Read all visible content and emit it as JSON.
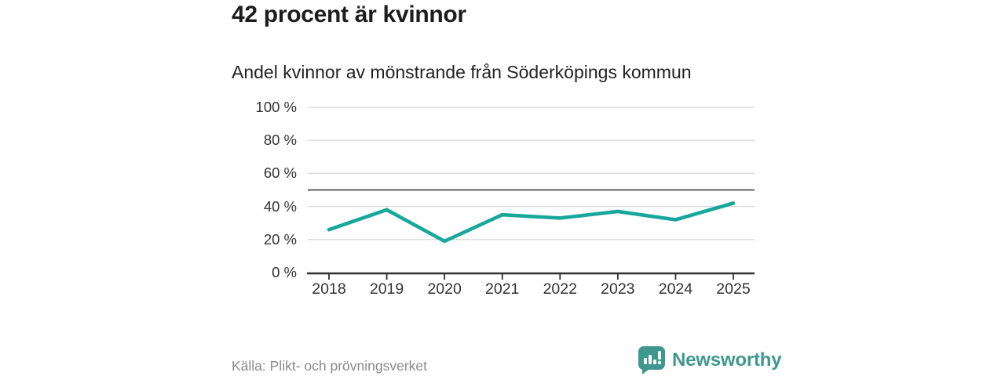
{
  "header": {
    "title": "42 procent är kvinnor",
    "subtitle": "Andel kvinnor av mönstrande från Söderköpings kommun"
  },
  "footer": {
    "source": "Källa: Plikt- och prövningsverket",
    "logo_text": "Newsworthy"
  },
  "colors": {
    "line": "#18a79b",
    "grid": "#d9d9d9",
    "reference": "#4a4a4a",
    "axis": "#2f2f2f",
    "title_text": "#1d1d1d",
    "label_text": "#333333",
    "muted_text": "#8a8a8a",
    "logo": "#3f988e"
  },
  "chart_data": {
    "type": "line",
    "title": "Andel kvinnor av mönstrande från Söderköpings kommun",
    "xlabel": "",
    "ylabel": "",
    "categories": [
      "2018",
      "2019",
      "2020",
      "2021",
      "2022",
      "2023",
      "2024",
      "2025"
    ],
    "series": [
      {
        "name": "Andel kvinnor",
        "values": [
          26,
          38,
          19,
          35,
          33,
          37,
          32,
          42
        ]
      }
    ],
    "ylim": [
      0,
      100
    ],
    "yticks": [
      0,
      20,
      40,
      60,
      80,
      100
    ],
    "ytick_labels": [
      "0 %",
      "20 %",
      "40 %",
      "60 %",
      "80 %",
      "100 %"
    ],
    "reference_line": 50,
    "grid": true,
    "legend": false
  }
}
